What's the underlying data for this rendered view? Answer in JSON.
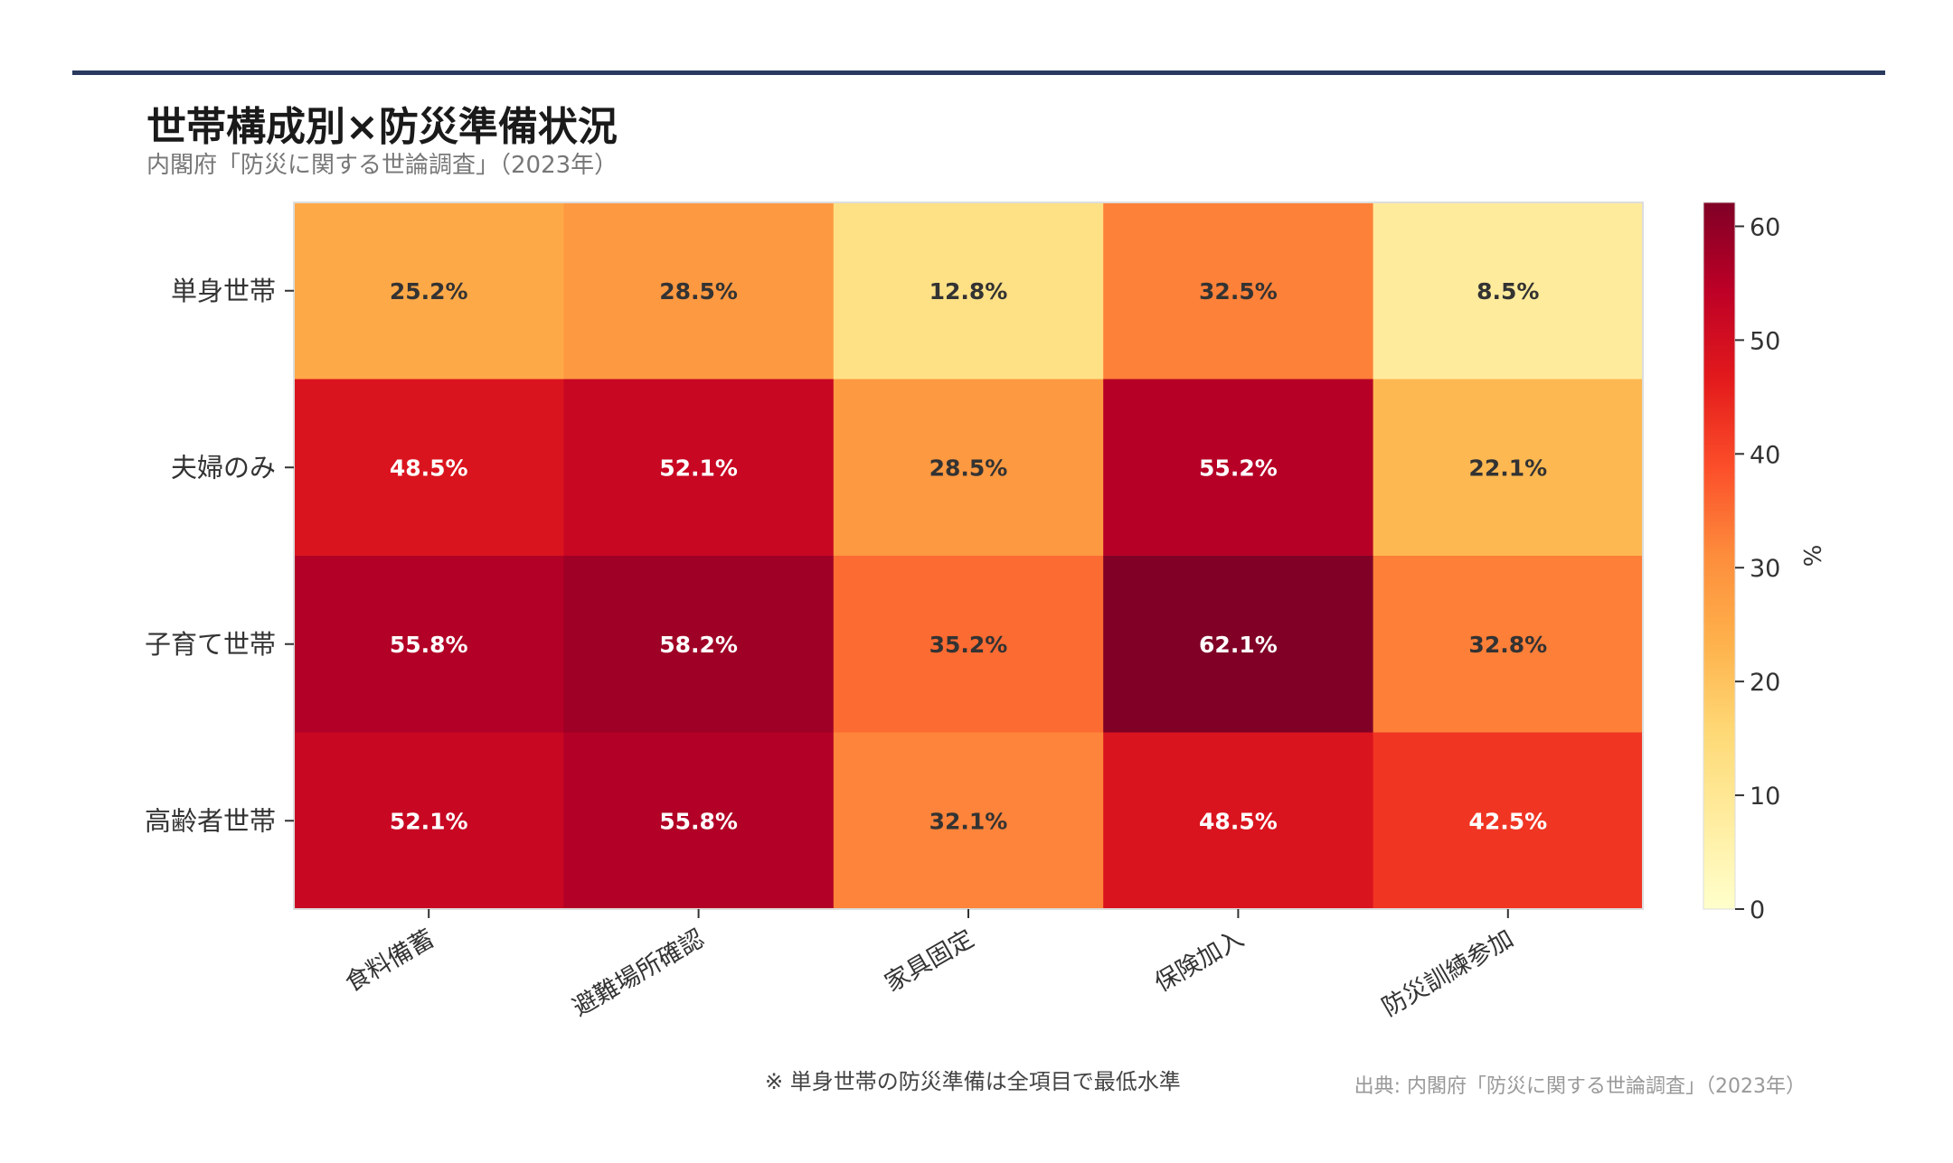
{
  "title": "世帯構成別×防災準備状況",
  "subtitle": "内閣府「防災に関する世論調査」（2023年）",
  "note": "※ 単身世帯の防災準備は全項目で最低水準",
  "source": "出典: 内閣府「防災に関する世論調査」（2023年）",
  "colors": {
    "title_bar": "#2a3a5f"
  },
  "chart_data": {
    "type": "heatmap",
    "rows": [
      "単身世帯",
      "夫婦のみ",
      "子育て世帯",
      "高齢者世帯"
    ],
    "columns": [
      "食料備蓄",
      "避難場所確認",
      "家具固定",
      "保険加入",
      "防災訓練参加"
    ],
    "values": [
      [
        25.2,
        28.5,
        12.8,
        32.5,
        8.5
      ],
      [
        48.5,
        52.1,
        28.5,
        55.2,
        22.1
      ],
      [
        55.8,
        58.2,
        35.2,
        62.1,
        32.8
      ],
      [
        52.1,
        55.8,
        32.1,
        48.5,
        42.5
      ]
    ],
    "value_suffix": "%",
    "colorscale": "YlOrRd",
    "colorbar": {
      "label": "%",
      "range": [
        0,
        62.1
      ],
      "ticks": [
        "0",
        "10",
        "20",
        "30",
        "40",
        "50",
        "60"
      ]
    }
  }
}
